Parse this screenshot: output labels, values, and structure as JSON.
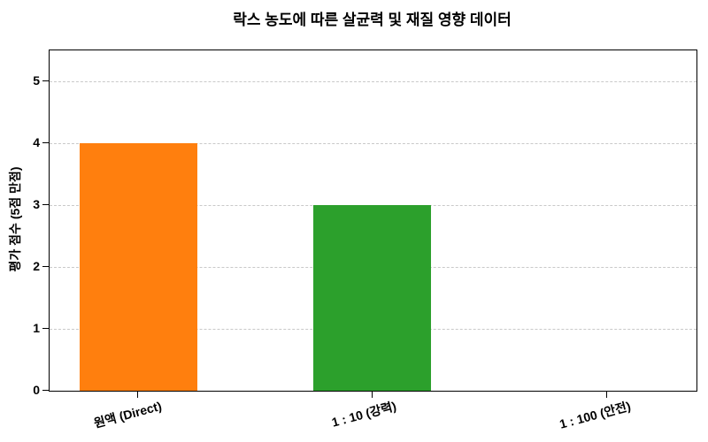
{
  "chart_data": {
    "type": "bar",
    "title": "락스 농도에 따른 살균력 및 재질 영향 데이터",
    "xlabel": "",
    "ylabel": "평가 점수 (5점 만점)",
    "categories": [
      "원액 (Direct)",
      "1 : 10 (강력)",
      "1 : 100 (안전)"
    ],
    "series": [
      {
        "name": "평가 점수",
        "values": [
          4,
          3,
          0
        ],
        "colors": [
          "#ff7f0e",
          "#2ca02c",
          null
        ]
      }
    ],
    "yticks": [
      0,
      1,
      2,
      3,
      4,
      5
    ],
    "ylim": [
      0,
      5.5
    ],
    "grid": "horizontal-dashed",
    "grid_color": "#c9c9c9",
    "legend": "none",
    "xtick_rotation_deg": 15,
    "text_color": "#000000",
    "background_color": "#ffffff"
  }
}
